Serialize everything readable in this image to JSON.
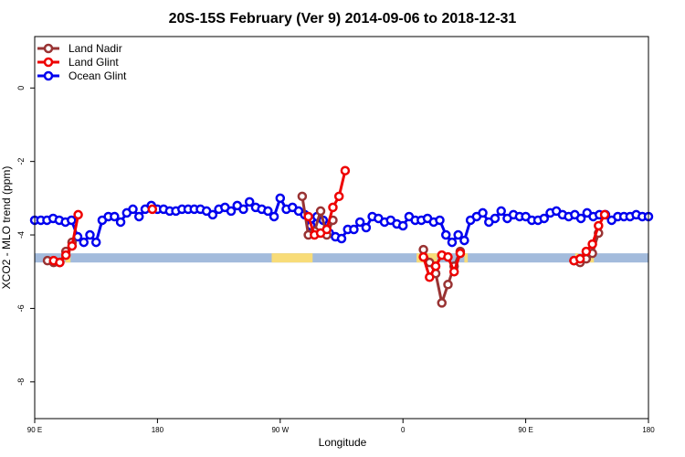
{
  "chart_data": {
    "type": "line",
    "title": "20S-15S February (Ver 9)   2014-09-06 to 2018-12-31",
    "xlabel": "Longitude",
    "ylabel": "XCO2 - MLO trend (ppm)",
    "xlim": [
      -90,
      270
    ],
    "ylim": [
      -9.0,
      1.4
    ],
    "x_ticks": [
      {
        "x": -90,
        "label": "90 E"
      },
      {
        "x": -18,
        "label": "180"
      },
      {
        "x": 54,
        "label": "90 W"
      },
      {
        "x": 126,
        "label": "0"
      },
      {
        "x": 198,
        "label": "90 E"
      },
      {
        "x": 270,
        "label": "180"
      }
    ],
    "y_ticks": [
      {
        "y": 0,
        "label": "0"
      },
      {
        "y": -2,
        "label": "-2"
      },
      {
        "y": -4,
        "label": "-4"
      },
      {
        "y": -6,
        "label": "-6"
      },
      {
        "y": -8,
        "label": "-8"
      }
    ],
    "legend_position": "top-left",
    "colors": {
      "land_nadir": "#993333",
      "land_glint": "#ee0000",
      "ocean_glint": "#0000ee",
      "band_ocean": "#a3bbdc",
      "band_land": "#f8dc78"
    },
    "surface_band": {
      "y_range": [
        -4.75,
        -4.5
      ],
      "land_segments": [
        [
          -72,
          -69
        ],
        [
          49,
          73
        ],
        [
          134,
          146
        ],
        [
          162,
          164
        ],
        [
          227,
          229
        ],
        [
          234,
          238
        ]
      ]
    },
    "series": [
      {
        "name": "Land Nadir",
        "color": "#993333",
        "x": [
          -82.5,
          -78.9,
          -75.3,
          -71.7,
          -68.1,
          66.9,
          70.5,
          74.1,
          77.7,
          81.3,
          84.9,
          138.0,
          141.6,
          145.2,
          148.8,
          152.4,
          156.0,
          159.6,
          226.3,
          229.9,
          233.5,
          237.1,
          240.7
        ],
        "y": [
          -4.7,
          -4.75,
          -4.75,
          -4.45,
          -4.2,
          -2.95,
          -4.0,
          -3.9,
          -3.35,
          -4.0,
          -3.6,
          -4.4,
          -4.75,
          -5.05,
          -5.85,
          -5.35,
          -4.85,
          -4.45,
          -4.7,
          -4.75,
          -4.65,
          -4.5,
          -3.95
        ]
      },
      {
        "name": "Land Glint",
        "color": "#ee0000",
        "x": [
          -78.9,
          -75.3,
          -71.7,
          -68.1,
          -64.5,
          -21.0,
          70.5,
          74.1,
          77.7,
          81.3,
          84.9,
          88.5,
          92.1,
          138.0,
          141.6,
          145.2,
          148.8,
          152.4,
          156.0,
          159.6,
          226.3,
          229.9,
          233.5,
          237.1,
          240.7,
          244.3
        ],
        "y": [
          -4.7,
          -4.75,
          -4.55,
          -4.3,
          -3.45,
          -3.3,
          -3.5,
          -4.0,
          -3.95,
          -3.85,
          -3.25,
          -2.95,
          -2.25,
          -4.6,
          -5.15,
          -4.85,
          -4.55,
          -4.6,
          -5.0,
          -4.5,
          -4.7,
          -4.65,
          -4.45,
          -4.25,
          -3.75,
          -3.45
        ]
      },
      {
        "name": "Ocean Glint",
        "color": "#0000ee",
        "x": [
          -90.0,
          -86.4,
          -82.8,
          -79.2,
          -75.6,
          -72.0,
          -68.4,
          -64.8,
          -61.2,
          -57.6,
          -54.0,
          -50.4,
          -46.8,
          -43.2,
          -39.6,
          -36.0,
          -32.4,
          -28.8,
          -25.2,
          -21.6,
          -18.0,
          -14.4,
          -10.8,
          -7.2,
          -3.6,
          0.0,
          3.6,
          7.2,
          10.8,
          14.4,
          18.0,
          21.6,
          25.2,
          28.8,
          32.4,
          36.0,
          39.6,
          43.2,
          46.8,
          50.4,
          54.0,
          57.6,
          61.2,
          64.8,
          68.4,
          72.0,
          75.6,
          79.2,
          82.8,
          86.4,
          90.0,
          93.6,
          97.2,
          100.8,
          104.4,
          108.0,
          111.6,
          115.2,
          118.8,
          122.4,
          126.0,
          129.6,
          133.2,
          136.8,
          140.4,
          144.0,
          147.6,
          151.2,
          154.8,
          158.4,
          162.0,
          165.6,
          169.2,
          172.8,
          176.4,
          180.0,
          183.6,
          187.2,
          190.8,
          194.4,
          198.0,
          201.6,
          205.2,
          208.8,
          212.4,
          216.0,
          219.6,
          223.2,
          226.8,
          230.4,
          234.0,
          237.6,
          241.2,
          244.8,
          248.4,
          252.0,
          255.6,
          259.2,
          262.8,
          266.4,
          270.0
        ],
        "y": [
          -3.6,
          -3.6,
          -3.6,
          -3.55,
          -3.6,
          -3.65,
          -3.6,
          -4.05,
          -4.2,
          -4.0,
          -4.2,
          -3.6,
          -3.5,
          -3.5,
          -3.65,
          -3.4,
          -3.3,
          -3.5,
          -3.3,
          -3.2,
          -3.3,
          -3.3,
          -3.35,
          -3.35,
          -3.3,
          -3.3,
          -3.3,
          -3.3,
          -3.35,
          -3.45,
          -3.3,
          -3.25,
          -3.35,
          -3.2,
          -3.3,
          -3.1,
          -3.25,
          -3.3,
          -3.35,
          -3.5,
          -3.0,
          -3.3,
          -3.25,
          -3.35,
          -3.45,
          -3.75,
          -3.5,
          -3.6,
          -3.95,
          -4.05,
          -4.1,
          -3.85,
          -3.85,
          -3.65,
          -3.8,
          -3.5,
          -3.55,
          -3.65,
          -3.6,
          -3.7,
          -3.75,
          -3.5,
          -3.6,
          -3.6,
          -3.55,
          -3.65,
          -3.6,
          -4.0,
          -4.2,
          -4.0,
          -4.15,
          -3.6,
          -3.5,
          -3.4,
          -3.65,
          -3.55,
          -3.35,
          -3.55,
          -3.45,
          -3.5,
          -3.5,
          -3.6,
          -3.6,
          -3.55,
          -3.4,
          -3.35,
          -3.45,
          -3.5,
          -3.45,
          -3.55,
          -3.4,
          -3.5,
          -3.45,
          -3.45,
          -3.6,
          -3.5,
          -3.5,
          -3.5,
          -3.45,
          -3.5,
          -3.5
        ]
      }
    ]
  }
}
